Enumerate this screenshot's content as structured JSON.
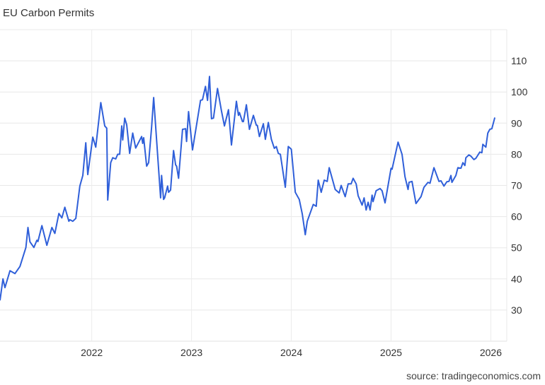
{
  "chart_data": {
    "type": "line",
    "title": "EU Carbon Permits",
    "source": "source: tradingeconomics.com",
    "xlabel": "",
    "ylabel": "",
    "xlim": [
      2021.08,
      2026.16
    ],
    "ylim": [
      20,
      120
    ],
    "x_ticks": [
      2022,
      2023,
      2024,
      2025,
      2026
    ],
    "y_ticks": [
      30,
      40,
      50,
      60,
      70,
      80,
      90,
      100,
      110
    ],
    "grid": true,
    "y_axis_side": "right",
    "line_color": "#2f5fd9",
    "series": [
      {
        "name": "EU Carbon Permits",
        "points": [
          [
            2021.08,
            33.1
          ],
          [
            2021.11,
            40
          ],
          [
            2021.13,
            37.2
          ],
          [
            2021.18,
            42.6
          ],
          [
            2021.23,
            41.7
          ],
          [
            2021.28,
            44
          ],
          [
            2021.34,
            50.1
          ],
          [
            2021.36,
            56.5
          ],
          [
            2021.38,
            51.9
          ],
          [
            2021.42,
            50.1
          ],
          [
            2021.45,
            52.4
          ],
          [
            2021.46,
            52
          ],
          [
            2021.5,
            57.1
          ],
          [
            2021.55,
            50.8
          ],
          [
            2021.6,
            56.5
          ],
          [
            2021.63,
            54.6
          ],
          [
            2021.67,
            61
          ],
          [
            2021.7,
            59.6
          ],
          [
            2021.73,
            63
          ],
          [
            2021.77,
            58.5
          ],
          [
            2021.78,
            59
          ],
          [
            2021.81,
            58.5
          ],
          [
            2021.84,
            59.4
          ],
          [
            2021.88,
            69.8
          ],
          [
            2021.91,
            73.2
          ],
          [
            2021.94,
            83.7
          ],
          [
            2021.96,
            73.5
          ],
          [
            2022.01,
            85.5
          ],
          [
            2022.04,
            82.3
          ],
          [
            2022.09,
            96.6
          ],
          [
            2022.13,
            89.1
          ],
          [
            2022.15,
            88.4
          ],
          [
            2022.16,
            65.3
          ],
          [
            2022.19,
            77.3
          ],
          [
            2022.21,
            78.9
          ],
          [
            2022.24,
            78.5
          ],
          [
            2022.26,
            80
          ],
          [
            2022.28,
            80
          ],
          [
            2022.3,
            89.1
          ],
          [
            2022.31,
            84.6
          ],
          [
            2022.33,
            91.6
          ],
          [
            2022.35,
            89.5
          ],
          [
            2022.38,
            80.3
          ],
          [
            2022.41,
            86.8
          ],
          [
            2022.44,
            82
          ],
          [
            2022.5,
            85.7
          ],
          [
            2022.51,
            83.5
          ],
          [
            2022.52,
            85.3
          ],
          [
            2022.55,
            76.2
          ],
          [
            2022.57,
            77.3
          ],
          [
            2022.6,
            88.7
          ],
          [
            2022.62,
            98.2
          ],
          [
            2022.69,
            66
          ],
          [
            2022.7,
            73.2
          ],
          [
            2022.72,
            65.5
          ],
          [
            2022.73,
            66
          ],
          [
            2022.76,
            69.8
          ],
          [
            2022.77,
            67.8
          ],
          [
            2022.79,
            68.5
          ],
          [
            2022.82,
            81.2
          ],
          [
            2022.84,
            76.6
          ],
          [
            2022.85,
            76.2
          ],
          [
            2022.87,
            72.3
          ],
          [
            2022.91,
            88
          ],
          [
            2022.94,
            88.2
          ],
          [
            2022.95,
            84.1
          ],
          [
            2022.97,
            93.7
          ],
          [
            2023.01,
            81.4
          ],
          [
            2023.09,
            97.3
          ],
          [
            2023.11,
            97.5
          ],
          [
            2023.14,
            101.8
          ],
          [
            2023.16,
            97.3
          ],
          [
            2023.18,
            105
          ],
          [
            2023.2,
            91.4
          ],
          [
            2023.22,
            91.6
          ],
          [
            2023.26,
            101.1
          ],
          [
            2023.3,
            93.9
          ],
          [
            2023.33,
            89.1
          ],
          [
            2023.37,
            94.3
          ],
          [
            2023.4,
            83
          ],
          [
            2023.45,
            97
          ],
          [
            2023.47,
            92.5
          ],
          [
            2023.48,
            93.4
          ],
          [
            2023.51,
            90.5
          ],
          [
            2023.52,
            90.5
          ],
          [
            2023.55,
            95.9
          ],
          [
            2023.58,
            88
          ],
          [
            2023.62,
            92.5
          ],
          [
            2023.65,
            89.3
          ],
          [
            2023.66,
            89.3
          ],
          [
            2023.68,
            85.7
          ],
          [
            2023.72,
            89.8
          ],
          [
            2023.74,
            84.8
          ],
          [
            2023.77,
            90.2
          ],
          [
            2023.8,
            84.8
          ],
          [
            2023.83,
            81.9
          ],
          [
            2023.85,
            82.5
          ],
          [
            2023.87,
            80.3
          ],
          [
            2023.89,
            80
          ],
          [
            2023.94,
            69.4
          ],
          [
            2023.97,
            82.5
          ],
          [
            2024.0,
            81.6
          ],
          [
            2024.04,
            67.8
          ],
          [
            2024.08,
            65.5
          ],
          [
            2024.11,
            60.8
          ],
          [
            2024.14,
            54.2
          ],
          [
            2024.16,
            58.5
          ],
          [
            2024.22,
            63.9
          ],
          [
            2024.25,
            63.3
          ],
          [
            2024.27,
            71.7
          ],
          [
            2024.3,
            67.8
          ],
          [
            2024.33,
            71.7
          ],
          [
            2024.36,
            71.3
          ],
          [
            2024.38,
            75.7
          ],
          [
            2024.44,
            68.7
          ],
          [
            2024.48,
            67.6
          ],
          [
            2024.5,
            70
          ],
          [
            2024.54,
            66.4
          ],
          [
            2024.57,
            70.5
          ],
          [
            2024.6,
            70.5
          ],
          [
            2024.62,
            72.3
          ],
          [
            2024.65,
            70.5
          ],
          [
            2024.67,
            66.7
          ],
          [
            2024.71,
            63.7
          ],
          [
            2024.73,
            66
          ],
          [
            2024.75,
            62.1
          ],
          [
            2024.77,
            64.6
          ],
          [
            2024.79,
            62.1
          ],
          [
            2024.81,
            66.9
          ],
          [
            2024.82,
            64.8
          ],
          [
            2024.85,
            68.3
          ],
          [
            2024.89,
            69
          ],
          [
            2024.91,
            68.3
          ],
          [
            2024.94,
            64.4
          ],
          [
            2025.0,
            75.5
          ],
          [
            2025.01,
            75.2
          ],
          [
            2025.07,
            83.9
          ],
          [
            2025.11,
            80
          ],
          [
            2025.14,
            72.8
          ],
          [
            2025.17,
            68.7
          ],
          [
            2025.18,
            71
          ],
          [
            2025.21,
            71.3
          ],
          [
            2025.25,
            64.2
          ],
          [
            2025.3,
            66.4
          ],
          [
            2025.33,
            69.4
          ],
          [
            2025.37,
            71
          ],
          [
            2025.39,
            70.7
          ],
          [
            2025.43,
            75.7
          ],
          [
            2025.48,
            71.3
          ],
          [
            2025.5,
            71.5
          ],
          [
            2025.53,
            69.8
          ],
          [
            2025.56,
            71.2
          ],
          [
            2025.58,
            71.3
          ],
          [
            2025.6,
            73.2
          ],
          [
            2025.61,
            71
          ],
          [
            2025.65,
            73.2
          ],
          [
            2025.67,
            75.7
          ],
          [
            2025.7,
            75.5
          ],
          [
            2025.72,
            77.3
          ],
          [
            2025.74,
            76.4
          ],
          [
            2025.75,
            78.9
          ],
          [
            2025.78,
            79.8
          ],
          [
            2025.8,
            79.4
          ],
          [
            2025.83,
            78.3
          ],
          [
            2025.85,
            78.7
          ],
          [
            2025.89,
            80.7
          ],
          [
            2025.91,
            80.5
          ],
          [
            2025.92,
            83.2
          ],
          [
            2025.95,
            82.3
          ],
          [
            2025.97,
            86.8
          ],
          [
            2025.99,
            88
          ],
          [
            2026.01,
            88.2
          ],
          [
            2026.04,
            91.8
          ]
        ]
      }
    ]
  }
}
